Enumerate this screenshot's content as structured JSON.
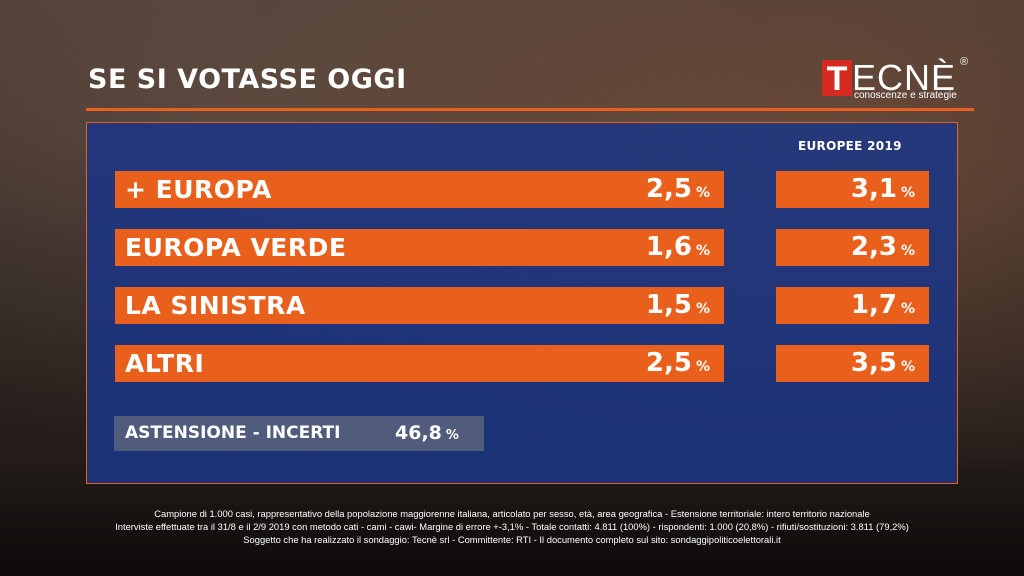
{
  "header": {
    "title": "SE SI VOTASSE OGGI"
  },
  "logo": {
    "initial": "T",
    "rest": "ECNÈ",
    "registered": "®",
    "tagline": "conoscenze e strategie"
  },
  "comparison_header": "EUROPEE 2019",
  "chart_data": {
    "type": "table",
    "title": "SE SI VOTASSE OGGI",
    "unit": "%",
    "columns": [
      "",
      "EUROPEE 2019"
    ],
    "rows": [
      {
        "party": "+ EUROPA",
        "value": "2,5",
        "europee_2019": "3,1"
      },
      {
        "party": "EUROPA VERDE",
        "value": "1,6",
        "europee_2019": "2,3"
      },
      {
        "party": "LA SINISTRA",
        "value": "1,5",
        "europee_2019": "1,7"
      },
      {
        "party": "ALTRI",
        "value": "2,5",
        "europee_2019": "3,5"
      }
    ],
    "abstention": {
      "label": "ASTENSIONE - INCERTI",
      "value": "46,8"
    }
  },
  "footer": {
    "line1": "Campione di 1.000 casi, rappresentativo della popolazione maggiorenne italiana, articolato per sesso, età, area geografica - Estensione territoriale: intero territorio nazionale",
    "line2": "Interviste effettuate tra il 31/8 e il 2/9 2019 con metodo cati - cami - cawi- Margine di errore +-3,1% - Totale contatti: 4.811 (100%) - rispondenti: 1.000 (20,8%) - rifiuti/sostituzioni: 3.811 (79,2%)",
    "line3": "Soggetto che ha realizzato il sondaggio: Tecnè srl - Committente: RTI - Il documento completo sul sito: sondaggipoliticoelettorali.it"
  },
  "colors": {
    "accent": "#e8601c",
    "panel": "#1b3584",
    "logo_red": "#d42a1f"
  }
}
